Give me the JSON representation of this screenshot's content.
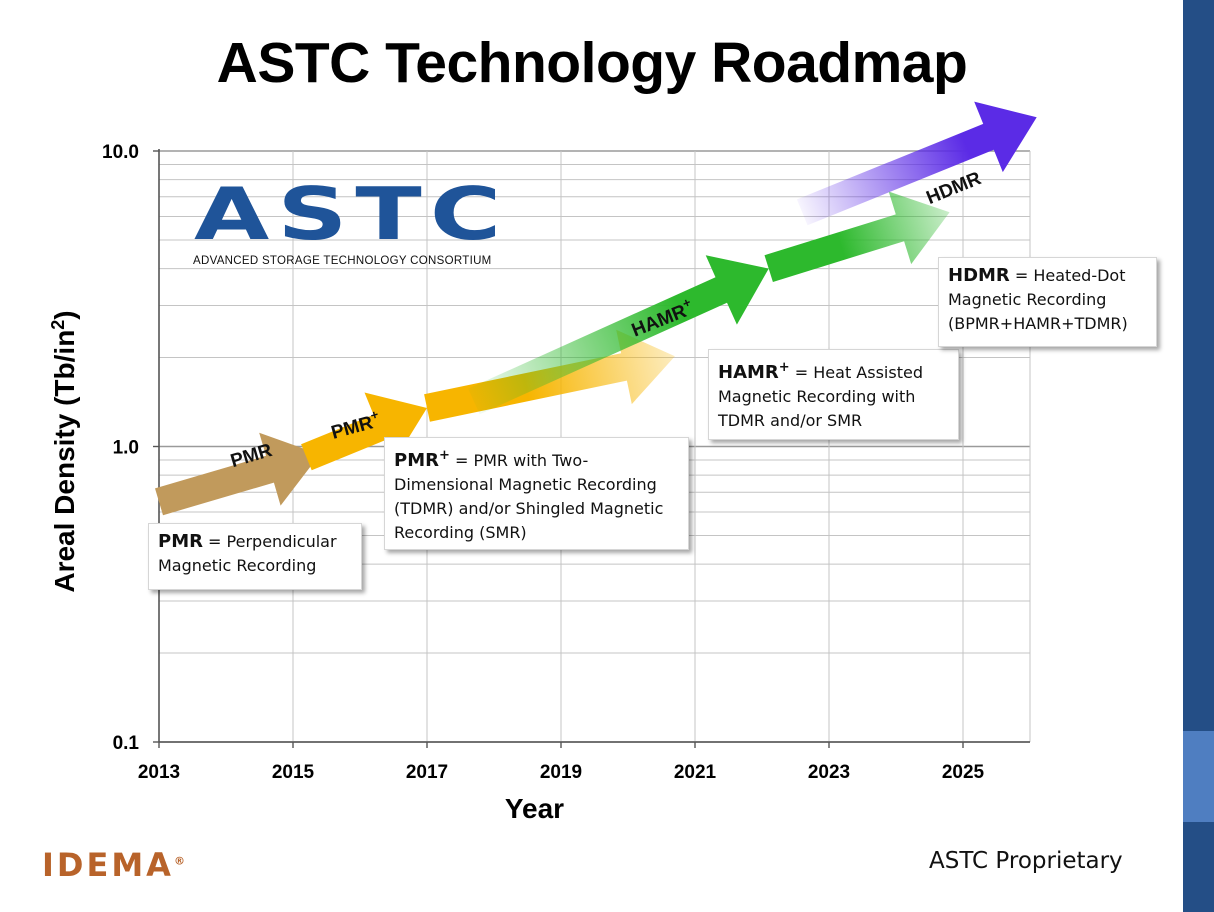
{
  "title": "ASTC Technology Roadmap",
  "chart_data": {
    "type": "line",
    "title": "ASTC Technology Roadmap",
    "xlabel": "Year",
    "ylabel": "Areal Density (Tb/in",
    "ylabel_sup": "2",
    "ylabel_close": ")",
    "x_ticks": [
      "2013",
      "2015",
      "2017",
      "2019",
      "2021",
      "2023",
      "2025"
    ],
    "x_range": [
      2013,
      2026
    ],
    "y_ticks": [
      "0.1",
      "1.0",
      "10.0"
    ],
    "y_range": [
      0.1,
      10
    ],
    "y_scale": "log",
    "grid": true,
    "series": [
      {
        "name": "PMR",
        "color": "#c19a5c",
        "label_pos": {
          "x": 2014.1,
          "y": 0.85
        },
        "x": [
          2013,
          2015.4
        ],
        "y": [
          0.65,
          0.94
        ]
      },
      {
        "name": "PMR",
        "sup": "+",
        "color": "#f7b500",
        "label_pos": {
          "x": 2015.6,
          "y": 1.06
        },
        "x": [
          2015.2,
          2017.0,
          2020.7
        ],
        "y": [
          0.92,
          1.35,
          2.02
        ]
      },
      {
        "name": "HAMR",
        "sup": "+",
        "color": "#2db92d",
        "label_pos": {
          "x": 2020.1,
          "y": 2.35
        },
        "x": [
          2017.7,
          2022.1,
          2024.8
        ],
        "y": [
          1.42,
          4.0,
          6.2
        ]
      },
      {
        "name": "HDMR",
        "color": "#5b2be6",
        "label_color": "#ffff00",
        "label_pos": {
          "x": 2024.5,
          "y": 6.6
        },
        "x": [
          2022.6,
          2026.1
        ],
        "y": [
          6.2,
          13.0
        ]
      }
    ]
  },
  "logo": {
    "astc": "ASTC",
    "astc_subtitle": "ADVANCED STORAGE TECHNOLOGY CONSORTIUM",
    "idema": "IDEMA",
    "idema_mark": "®"
  },
  "definitions": {
    "pmr": {
      "term": "PMR",
      "text": " = Perpendicular Magnetic Recording"
    },
    "pmr_plus": {
      "term": "PMR",
      "sup": "+",
      "text": " = PMR with Two-Dimensional Magnetic Recording (TDMR) and/or Shingled Magnetic Recording (SMR)"
    },
    "hamr_plus": {
      "term": "HAMR",
      "sup": "+",
      "text": " = Heat Assisted Magnetic Recording with TDMR and/or SMR"
    },
    "hdmr": {
      "term": "HDMR",
      "text": " = Heated-Dot Magnetic Recording (BPMR+HAMR+TDMR)"
    }
  },
  "footer": {
    "proprietary": "ASTC Proprietary"
  },
  "colors": {
    "accent": "#244e86",
    "accent_light": "#4f7ec1",
    "brand_blue": "#1f5499",
    "idema_orange": "#b8632a"
  }
}
